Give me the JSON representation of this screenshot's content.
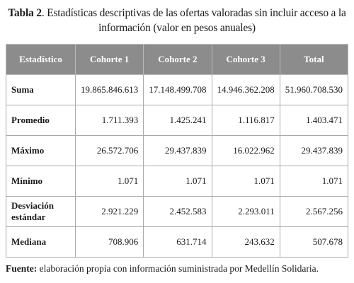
{
  "title": {
    "label": "Tabla 2",
    "text": ". Estadísticas descriptivas de las ofertas valoradas sin incluir acceso a la información (valor en pesos anuales)"
  },
  "table": {
    "header": [
      "Estadístico",
      "Cohorte 1",
      "Cohorte 2",
      "Cohorte 3",
      "Total"
    ],
    "rows": [
      [
        "Suma",
        "19.865.846.613",
        "17.148.499.708",
        "14.946.362.208",
        "51.960.708.530"
      ],
      [
        "Promedio",
        "1.711.393",
        "1.425.241",
        "1.116.817",
        "1.403.471"
      ],
      [
        "Máximo",
        "26.572.706",
        "29.437.839",
        "16.022.962",
        "29.437.839"
      ],
      [
        "Mínimo",
        "1.071",
        "1.071",
        "1.071",
        "1.071"
      ],
      [
        "Desviación estándar",
        "2.921.229",
        "2.452.583",
        "2.293.011",
        "2.567.256"
      ],
      [
        "Mediana",
        "708.906",
        "631.714",
        "243.632",
        "507.678"
      ]
    ]
  },
  "footer": {
    "label": "Fuente:",
    "text": " elaboración propia con información suministrada por Medellín Solidaria."
  }
}
